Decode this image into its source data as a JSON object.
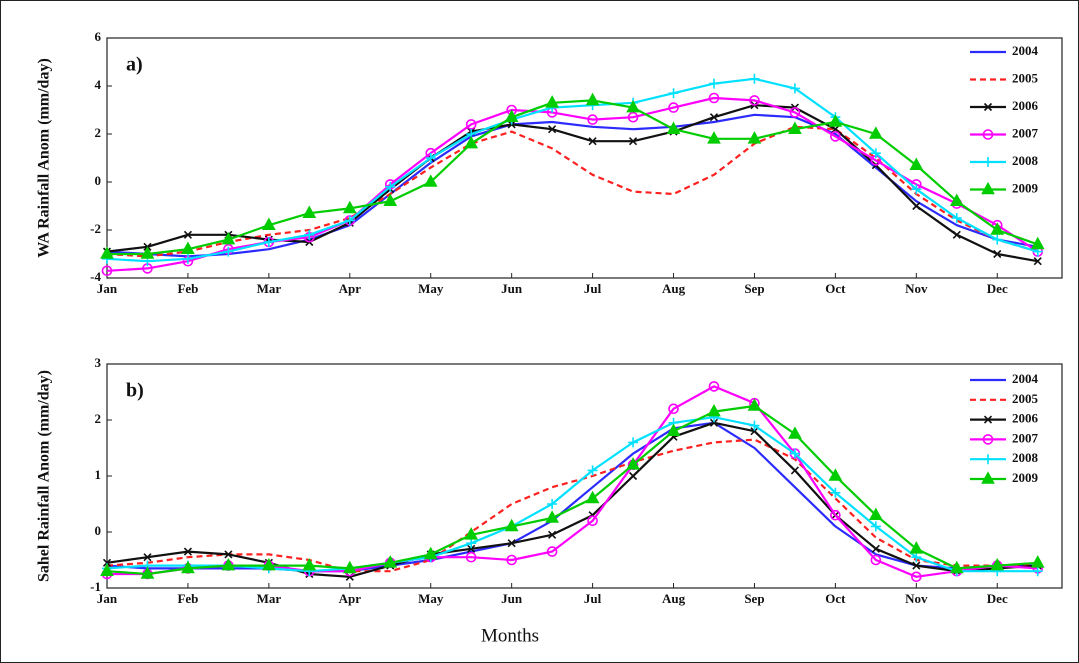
{
  "chart_data": [
    {
      "type": "line",
      "panel_label": "a)",
      "ylabel": "WA Rainfall Anom (mm/day)",
      "x": [
        1,
        1.5,
        2,
        2.5,
        3,
        3.5,
        4,
        4.5,
        5,
        5.5,
        6,
        6.5,
        7,
        7.5,
        8,
        8.5,
        9,
        9.5,
        10,
        10.5,
        11,
        11.5,
        12,
        12.5
      ],
      "xlim": [
        1,
        12.8
      ],
      "xticks": [
        {
          "value": 1,
          "label": "Jan"
        },
        {
          "value": 2,
          "label": "Feb"
        },
        {
          "value": 3,
          "label": "Mar"
        },
        {
          "value": 4,
          "label": "Apr"
        },
        {
          "value": 5,
          "label": "May"
        },
        {
          "value": 6,
          "label": "Jun"
        },
        {
          "value": 7,
          "label": "Jul"
        },
        {
          "value": 8,
          "label": "Aug"
        },
        {
          "value": 9,
          "label": "Sep"
        },
        {
          "value": 10,
          "label": "Oct"
        },
        {
          "value": 11,
          "label": "Nov"
        },
        {
          "value": 12,
          "label": "Dec"
        }
      ],
      "ylim": [
        -4,
        6
      ],
      "yticks": [
        -4,
        -2,
        0,
        2,
        4,
        6
      ],
      "series": [
        {
          "name": "2004",
          "color": "#2b2bff",
          "dash": false,
          "marker": "none",
          "values": [
            -2.9,
            -3.0,
            -3.1,
            -3.0,
            -2.8,
            -2.4,
            -1.8,
            -0.5,
            0.8,
            1.9,
            2.4,
            2.5,
            2.3,
            2.2,
            2.3,
            2.5,
            2.8,
            2.7,
            2.0,
            0.6,
            -0.8,
            -1.8,
            -2.4,
            -2.7
          ]
        },
        {
          "name": "2005",
          "color": "#ff2020",
          "dash": true,
          "marker": "none",
          "values": [
            -3.0,
            -3.1,
            -2.9,
            -2.5,
            -2.2,
            -2.0,
            -1.5,
            -0.5,
            0.6,
            1.6,
            2.1,
            1.4,
            0.3,
            -0.4,
            -0.5,
            0.3,
            1.6,
            2.3,
            2.2,
            1.0,
            -0.5,
            -1.6,
            -2.4,
            -2.9
          ]
        },
        {
          "name": "2006",
          "color": "#111111",
          "dash": false,
          "marker": "x",
          "values": [
            -2.9,
            -2.7,
            -2.2,
            -2.2,
            -2.4,
            -2.5,
            -1.7,
            -0.3,
            1.0,
            2.1,
            2.4,
            2.2,
            1.7,
            1.7,
            2.1,
            2.7,
            3.2,
            3.1,
            2.2,
            0.7,
            -1.0,
            -2.2,
            -3.0,
            -3.3
          ]
        },
        {
          "name": "2007",
          "color": "#ff00ff",
          "dash": false,
          "marker": "circle",
          "values": [
            -3.7,
            -3.6,
            -3.3,
            -2.8,
            -2.5,
            -2.3,
            -1.6,
            -0.1,
            1.2,
            2.4,
            3.0,
            2.9,
            2.6,
            2.7,
            3.1,
            3.5,
            3.4,
            2.9,
            1.9,
            0.9,
            -0.1,
            -0.9,
            -1.8,
            -2.9
          ]
        },
        {
          "name": "2008",
          "color": "#00e0ff",
          "dash": false,
          "marker": "plus",
          "values": [
            -3.2,
            -3.3,
            -3.2,
            -2.9,
            -2.5,
            -2.2,
            -1.6,
            -0.2,
            1.0,
            2.0,
            2.6,
            3.1,
            3.2,
            3.3,
            3.7,
            4.1,
            4.3,
            3.9,
            2.7,
            1.2,
            -0.3,
            -1.5,
            -2.4,
            -2.9
          ]
        },
        {
          "name": "2009",
          "color": "#00cc00",
          "dash": false,
          "marker": "triangle",
          "values": [
            -3.0,
            -3.0,
            -2.8,
            -2.4,
            -1.8,
            -1.3,
            -1.1,
            -0.8,
            0.0,
            1.6,
            2.7,
            3.3,
            3.4,
            3.1,
            2.2,
            1.8,
            1.8,
            2.2,
            2.5,
            2.0,
            0.7,
            -0.8,
            -2.0,
            -2.6
          ]
        }
      ]
    },
    {
      "type": "line",
      "panel_label": "b)",
      "ylabel": "Sahel Rainfall Anom (mm/day)",
      "xlabel": "Months",
      "x": [
        1,
        1.5,
        2,
        2.5,
        3,
        3.5,
        4,
        4.5,
        5,
        5.5,
        6,
        6.5,
        7,
        7.5,
        8,
        8.5,
        9,
        9.5,
        10,
        10.5,
        11,
        11.5,
        12,
        12.5
      ],
      "xlim": [
        1,
        12.8
      ],
      "xticks": [
        {
          "value": 1,
          "label": "Jan"
        },
        {
          "value": 2,
          "label": "Feb"
        },
        {
          "value": 3,
          "label": "Mar"
        },
        {
          "value": 4,
          "label": "Apr"
        },
        {
          "value": 5,
          "label": "May"
        },
        {
          "value": 6,
          "label": "Jun"
        },
        {
          "value": 7,
          "label": "Jul"
        },
        {
          "value": 8,
          "label": "Aug"
        },
        {
          "value": 9,
          "label": "Sep"
        },
        {
          "value": 10,
          "label": "Oct"
        },
        {
          "value": 11,
          "label": "Nov"
        },
        {
          "value": 12,
          "label": "Dec"
        }
      ],
      "ylim": [
        -1,
        3
      ],
      "yticks": [
        -1,
        0,
        1,
        2,
        3
      ],
      "series": [
        {
          "name": "2004",
          "color": "#2b2bff",
          "dash": false,
          "marker": "none",
          "values": [
            -0.6,
            -0.65,
            -0.65,
            -0.65,
            -0.65,
            -0.7,
            -0.7,
            -0.6,
            -0.5,
            -0.35,
            -0.2,
            0.2,
            0.8,
            1.4,
            1.85,
            1.95,
            1.5,
            0.8,
            0.1,
            -0.4,
            -0.6,
            -0.65,
            -0.6,
            -0.6
          ]
        },
        {
          "name": "2005",
          "color": "#ff2020",
          "dash": true,
          "marker": "none",
          "values": [
            -0.6,
            -0.55,
            -0.45,
            -0.4,
            -0.4,
            -0.5,
            -0.7,
            -0.7,
            -0.5,
            0.0,
            0.5,
            0.8,
            1.0,
            1.25,
            1.45,
            1.6,
            1.65,
            1.3,
            0.6,
            -0.1,
            -0.5,
            -0.6,
            -0.6,
            -0.6
          ]
        },
        {
          "name": "2006",
          "color": "#111111",
          "dash": false,
          "marker": "x",
          "values": [
            -0.55,
            -0.45,
            -0.35,
            -0.4,
            -0.55,
            -0.75,
            -0.8,
            -0.6,
            -0.4,
            -0.3,
            -0.2,
            -0.05,
            0.3,
            1.0,
            1.7,
            1.95,
            1.8,
            1.1,
            0.3,
            -0.3,
            -0.6,
            -0.7,
            -0.65,
            -0.6
          ]
        },
        {
          "name": "2007",
          "color": "#ff00ff",
          "dash": false,
          "marker": "circle",
          "values": [
            -0.75,
            -0.75,
            -0.65,
            -0.6,
            -0.6,
            -0.7,
            -0.7,
            -0.55,
            -0.45,
            -0.45,
            -0.5,
            -0.35,
            0.2,
            1.2,
            2.2,
            2.6,
            2.3,
            1.4,
            0.3,
            -0.5,
            -0.8,
            -0.7,
            -0.6,
            -0.65
          ]
        },
        {
          "name": "2008",
          "color": "#00e0ff",
          "dash": false,
          "marker": "plus",
          "values": [
            -0.65,
            -0.6,
            -0.6,
            -0.6,
            -0.65,
            -0.7,
            -0.65,
            -0.55,
            -0.45,
            -0.2,
            0.1,
            0.5,
            1.1,
            1.6,
            1.95,
            2.05,
            1.9,
            1.4,
            0.7,
            0.1,
            -0.45,
            -0.7,
            -0.7,
            -0.7
          ]
        },
        {
          "name": "2009",
          "color": "#00cc00",
          "dash": false,
          "marker": "triangle",
          "values": [
            -0.7,
            -0.75,
            -0.65,
            -0.6,
            -0.6,
            -0.6,
            -0.65,
            -0.55,
            -0.4,
            -0.05,
            0.1,
            0.25,
            0.6,
            1.2,
            1.8,
            2.15,
            2.25,
            1.75,
            1.0,
            0.3,
            -0.3,
            -0.65,
            -0.6,
            -0.55
          ]
        }
      ]
    }
  ]
}
